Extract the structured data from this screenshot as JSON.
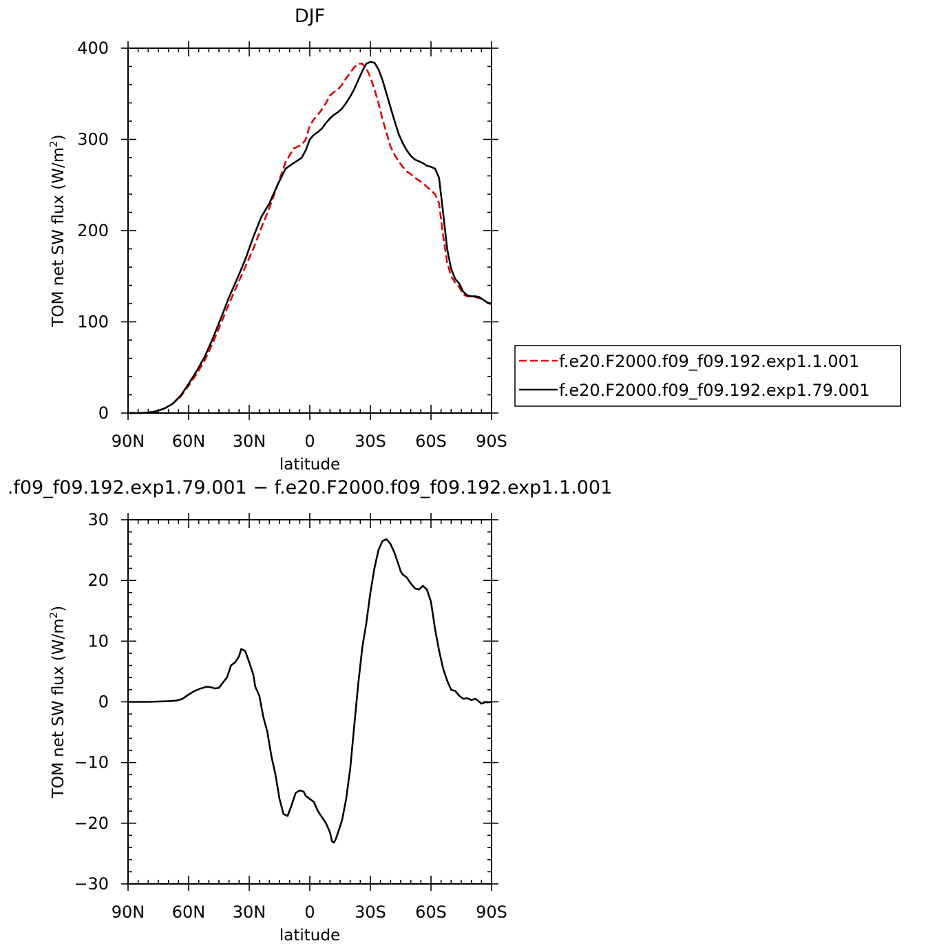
{
  "chart_data": [
    {
      "type": "line",
      "title": "DJF",
      "xlabel": "latitude",
      "ylabel": "TOM net SW flux (W/m",
      "ylabel_sup": "2",
      "ylabel_close": ")",
      "xlim": [
        90,
        -90
      ],
      "ylim": [
        0,
        400
      ],
      "x_ticks": [
        90,
        60,
        30,
        0,
        -30,
        -60,
        -90
      ],
      "x_tick_labels": [
        "90N",
        "60N",
        "30N",
        "0",
        "30S",
        "60S",
        "90S"
      ],
      "y_ticks": [
        0,
        100,
        200,
        300,
        400
      ],
      "y_tick_labels": [
        "0",
        "100",
        "200",
        "300",
        "400"
      ],
      "grid": false,
      "legend_position": "right",
      "series": [
        {
          "name": "f.e20.F2000.f09_f09.192.exp1.1.001",
          "color": "#e00000",
          "dash": "dashed",
          "x": [
            90,
            84,
            80,
            76,
            72,
            68,
            64,
            60,
            56,
            52,
            48,
            44,
            40,
            36,
            32,
            28,
            24,
            20,
            16,
            12,
            8,
            6,
            4,
            2,
            0,
            -2,
            -4,
            -6,
            -8,
            -10,
            -12,
            -14,
            -16,
            -18,
            -20,
            -22,
            -24,
            -26,
            -28,
            -30,
            -32,
            -34,
            -36,
            -38,
            -40,
            -42,
            -44,
            -46,
            -48,
            -50,
            -52,
            -54,
            -56,
            -58,
            -60,
            -62,
            -64,
            -66,
            -68,
            -70,
            -72,
            -74,
            -76,
            -78,
            -80,
            -82,
            -84,
            -86,
            -88,
            -90
          ],
          "y": [
            0,
            0,
            0.5,
            2,
            5,
            10,
            18,
            30,
            43,
            58,
            77,
            98,
            120,
            140,
            160,
            180,
            203,
            225,
            250,
            275,
            290,
            292,
            294,
            300,
            315,
            322,
            327,
            333,
            340,
            348,
            352,
            355,
            360,
            367,
            373,
            379,
            383,
            383,
            378,
            368,
            355,
            340,
            322,
            307,
            292,
            283,
            276,
            270,
            265,
            262,
            258,
            255,
            252,
            248,
            244,
            240,
            230,
            195,
            165,
            150,
            143,
            138,
            130,
            128,
            128,
            127,
            126,
            124,
            121,
            119
          ]
        },
        {
          "name": "f.e20.F2000.f09_f09.192.exp1.79.001",
          "color": "#000000",
          "dash": "solid",
          "x": [
            90,
            84,
            80,
            76,
            72,
            68,
            64,
            60,
            56,
            52,
            48,
            44,
            40,
            36,
            32,
            28,
            24,
            20,
            16,
            12,
            8,
            6,
            4,
            2,
            0,
            -2,
            -4,
            -6,
            -8,
            -10,
            -12,
            -14,
            -16,
            -18,
            -20,
            -22,
            -24,
            -26,
            -28,
            -30,
            -32,
            -34,
            -36,
            -38,
            -40,
            -42,
            -44,
            -46,
            -48,
            -50,
            -52,
            -54,
            -56,
            -58,
            -60,
            -62,
            -64,
            -66,
            -68,
            -70,
            -72,
            -74,
            -76,
            -78,
            -80,
            -82,
            -84,
            -86,
            -88,
            -90
          ],
          "y": [
            0,
            0,
            0.5,
            2,
            5,
            10,
            19,
            32,
            46,
            62,
            82,
            104,
            127,
            147,
            168,
            193,
            215,
            230,
            250,
            268,
            274,
            277,
            280,
            288,
            300,
            305,
            308,
            312,
            318,
            323,
            327,
            330,
            334,
            340,
            347,
            355,
            365,
            375,
            383,
            385,
            384,
            377,
            365,
            350,
            335,
            320,
            306,
            296,
            288,
            282,
            278,
            276,
            274,
            271,
            270,
            268,
            258,
            220,
            180,
            158,
            147,
            142,
            133,
            129,
            128,
            128,
            127,
            124,
            121,
            120
          ]
        }
      ]
    },
    {
      "type": "line",
      "title": ".f09_f09.192.exp1.79.001 − f.e20.F2000.f09_f09.192.exp1.1.001",
      "xlabel": "latitude",
      "ylabel": "TOM net SW flux (W/m",
      "ylabel_sup": "2",
      "ylabel_close": ")",
      "xlim": [
        90,
        -90
      ],
      "ylim": [
        -30,
        30
      ],
      "x_ticks": [
        90,
        60,
        30,
        0,
        -30,
        -60,
        -90
      ],
      "x_tick_labels": [
        "90N",
        "60N",
        "30N",
        "0",
        "30S",
        "60S",
        "90S"
      ],
      "y_ticks": [
        -30,
        -20,
        -10,
        0,
        10,
        20,
        30
      ],
      "y_tick_labels": [
        "−30",
        "−20",
        "−10",
        "0",
        "10",
        "20",
        "30"
      ],
      "grid": false,
      "series": [
        {
          "name": "",
          "color": "#000000",
          "dash": "solid",
          "x": [
            90,
            80,
            70,
            66,
            63,
            60,
            57,
            54,
            51,
            49,
            47,
            45,
            43,
            41,
            39,
            37,
            35,
            34,
            32,
            30,
            28,
            27,
            25,
            23,
            21,
            19,
            17,
            15,
            13,
            11,
            9,
            7,
            5,
            3,
            2,
            0,
            -2,
            -4,
            -6,
            -8,
            -10,
            -11,
            -12,
            -13,
            -14,
            -16,
            -18,
            -20,
            -22,
            -24,
            -26,
            -28,
            -30,
            -32,
            -34,
            -36,
            -38,
            -40,
            -42,
            -44,
            -45,
            -46,
            -48,
            -50,
            -52,
            -54,
            -56,
            -58,
            -60,
            -62,
            -64,
            -66,
            -68,
            -70,
            -72,
            -74,
            -76,
            -78,
            -80,
            -82,
            -84,
            -85,
            -86,
            -87,
            -88,
            -90
          ],
          "y": [
            0,
            0,
            0.1,
            0.2,
            0.5,
            1.2,
            1.8,
            2.2,
            2.5,
            2.4,
            2.2,
            2.3,
            3.2,
            4,
            6,
            6.5,
            7.5,
            8.7,
            8.4,
            6.5,
            4.5,
            2.5,
            1,
            -2.5,
            -5,
            -9,
            -12,
            -16,
            -18.5,
            -18.8,
            -17,
            -15,
            -14.6,
            -14.8,
            -15.5,
            -16,
            -16.5,
            -18,
            -19,
            -20,
            -21.5,
            -23,
            -23.2,
            -22.5,
            -21.5,
            -19.5,
            -16,
            -11,
            -4,
            3,
            9,
            13,
            18,
            22,
            25,
            26.5,
            26.8,
            26,
            24.5,
            22.5,
            21.5,
            21,
            20.5,
            19.5,
            18.7,
            18.5,
            19.1,
            18.5,
            16.5,
            12,
            8.5,
            5.5,
            3.5,
            2,
            1.8,
            1,
            0.5,
            0.6,
            0.3,
            0.5,
            0,
            -0.3,
            -0.2,
            0,
            -0.1,
            0
          ]
        }
      ]
    }
  ]
}
